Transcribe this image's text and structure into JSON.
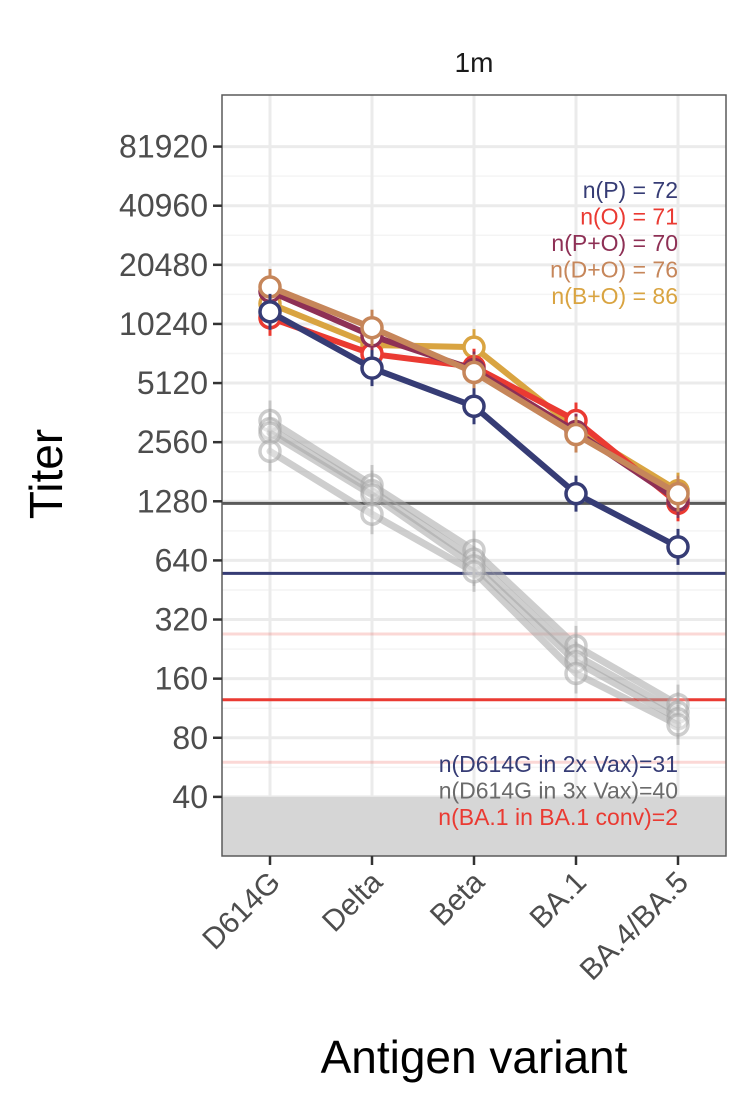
{
  "chart_data": {
    "type": "line",
    "facet_title": "1m",
    "xlabel": "Antigen variant",
    "ylabel": "Titer",
    "categories": [
      "D614G",
      "Delta",
      "Beta",
      "BA.1",
      "BA.4/BA.5"
    ],
    "y_scale": "log2",
    "y_ticks": [
      40,
      80,
      160,
      320,
      640,
      1280,
      2560,
      5120,
      10240,
      20480,
      40960,
      81920
    ],
    "y_tick_labels": [
      "40",
      "80",
      "160",
      "320",
      "640",
      "1280",
      "2560",
      "5120",
      "10240",
      "20480",
      "40960",
      "81920"
    ],
    "ylim": [
      20,
      150000
    ],
    "shaded_below": 40,
    "grid": true,
    "series": [
      {
        "color": "#d9a441",
        "values": [
          13000,
          8000,
          7800,
          3000,
          1450
        ]
      },
      {
        "color": "#ea3a32",
        "values": [
          11000,
          7200,
          6200,
          3300,
          1250
        ]
      },
      {
        "color": "#8e3055",
        "values": [
          15000,
          8900,
          6000,
          2900,
          1300
        ]
      },
      {
        "color": "#c6865a",
        "values": [
          15800,
          9800,
          5800,
          2800,
          1400
        ]
      },
      {
        "color": "#363c75",
        "values": [
          11800,
          6100,
          3900,
          1400,
          750
        ]
      }
    ],
    "reference_series": [
      {
        "color": "#a6a6a6",
        "values": [
          3300,
          1550,
          720,
          235,
          118
        ]
      },
      {
        "color": "#a6a6a6",
        "values": [
          3000,
          1450,
          650,
          210,
          108
        ]
      },
      {
        "color": "#a6a6a6",
        "values": [
          2850,
          1380,
          600,
          195,
          100
        ]
      },
      {
        "color": "#a6a6a6",
        "values": [
          2300,
          1100,
          560,
          170,
          93
        ]
      }
    ],
    "hlines": [
      {
        "value": 1250,
        "color": "#5a5a5a",
        "opacity": 1.0
      },
      {
        "value": 550,
        "color": "#363c75",
        "opacity": 1.0
      },
      {
        "value": 270,
        "color": "#ea3a32",
        "opacity": 0.2
      },
      {
        "value": 125,
        "color": "#ea3a32",
        "opacity": 1.0
      },
      {
        "value": 60,
        "color": "#ea3a32",
        "opacity": 0.2
      }
    ],
    "counts_legend": [
      {
        "text": "n(P) = 72",
        "color": "#363c75"
      },
      {
        "text": "n(O) = 71",
        "color": "#ea3a32"
      },
      {
        "text": "n(P+O) = 70",
        "color": "#8e3055"
      },
      {
        "text": "n(D+O) = 76",
        "color": "#c6865a"
      },
      {
        "text": "n(B+O) = 86",
        "color": "#d9a441"
      }
    ],
    "reference_legend": [
      {
        "text": "n(D614G in 2x Vax)=31",
        "color": "#363c75"
      },
      {
        "text": "n(D614G in 3x Vax)=40",
        "color": "#6b6b6b"
      },
      {
        "text": "n(BA.1 in BA.1 conv)=2",
        "color": "#ea3a32"
      }
    ]
  }
}
